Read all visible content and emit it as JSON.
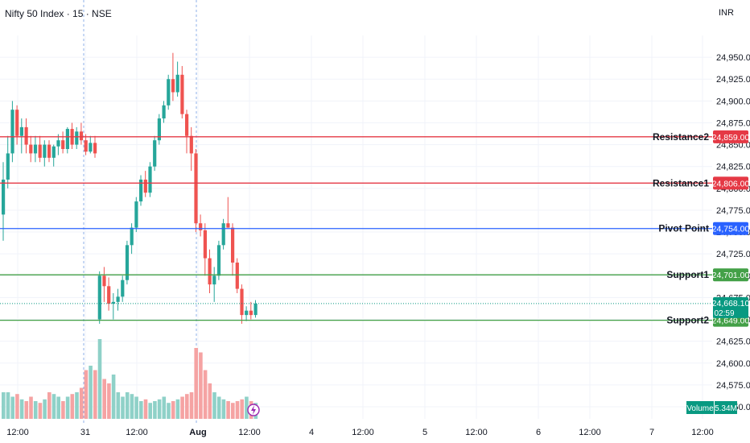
{
  "header": {
    "title": "Nifty 50 Index · 15 · NSE",
    "currency": "INR"
  },
  "colors": {
    "up": "#26a69a",
    "down": "#ef5350",
    "up_vol": "#8fd1c8",
    "down_vol": "#f5a3a3",
    "resistance": "#e53945",
    "pivot": "#2962ff",
    "support": "#43a047",
    "last": "#089981"
  },
  "chart_data": {
    "type": "candlestick",
    "price_axis": {
      "ylim": [
        24550,
        24975
      ],
      "ticks": [
        "24,950.00",
        "24,925.00",
        "24,900.00",
        "24,875.00",
        "24,850.00",
        "24,825.00",
        "24,800.00",
        "24,775.00",
        "24,750.00",
        "24,725.00",
        "24,700.00",
        "24,675.00",
        "24,650.00",
        "24,625.00",
        "24,600.00",
        "24,575.00",
        "24,550.00"
      ],
      "tick_values": [
        24950,
        24925,
        24900,
        24875,
        24850,
        24825,
        24800,
        24775,
        24750,
        24725,
        24700,
        24675,
        24650,
        24625,
        24600,
        24575,
        24550
      ]
    },
    "time_axis": {
      "ticks": [
        "12:00",
        "31",
        "12:00",
        "Aug",
        "12:00",
        "4",
        "12:00",
        "5",
        "12:00",
        "6",
        "12:00",
        "7",
        "12:00"
      ]
    },
    "levels": [
      {
        "name": "Resistance2",
        "value": 24859,
        "label": "24,859.00",
        "kind": "resistance"
      },
      {
        "name": "Resistance1",
        "value": 24806,
        "label": "24,806.00",
        "kind": "resistance"
      },
      {
        "name": "Pivot Point",
        "value": 24754,
        "label": "24,754.00",
        "kind": "pivot"
      },
      {
        "name": "Support1",
        "value": 24701,
        "label": "24,701.00",
        "kind": "support"
      },
      {
        "name": "Support2",
        "value": 24649,
        "label": "24,649.00",
        "kind": "support"
      }
    ],
    "last_price": {
      "value": 24668.1,
      "label": "24,668.10",
      "countdown": "02:59"
    },
    "volume": {
      "label": "Volume",
      "value": "5.34M"
    },
    "candles": [
      [
        24770,
        24830,
        24740,
        24810
      ],
      [
        24810,
        24860,
        24800,
        24840
      ],
      [
        24840,
        24900,
        24830,
        24890
      ],
      [
        24890,
        24895,
        24850,
        24860
      ],
      [
        24860,
        24880,
        24840,
        24870
      ],
      [
        24870,
        24880,
        24840,
        24850
      ],
      [
        24850,
        24860,
        24830,
        24840
      ],
      [
        24840,
        24860,
        24830,
        24850
      ],
      [
        24850,
        24860,
        24830,
        24835
      ],
      [
        24835,
        24855,
        24825,
        24850
      ],
      [
        24850,
        24855,
        24830,
        24835
      ],
      [
        24835,
        24850,
        24825,
        24848
      ],
      [
        24848,
        24862,
        24838,
        24855
      ],
      [
        24855,
        24865,
        24840,
        24845
      ],
      [
        24845,
        24870,
        24840,
        24868
      ],
      [
        24868,
        24875,
        24845,
        24850
      ],
      [
        24850,
        24870,
        24845,
        24865
      ],
      [
        24865,
        24875,
        24850,
        24855
      ],
      [
        24855,
        24862,
        24838,
        24842
      ],
      [
        24842,
        24860,
        24840,
        24852
      ],
      [
        24852,
        24860,
        24835,
        24840
      ],
      [
        24650,
        24705,
        24645,
        24700
      ],
      [
        24700,
        24710,
        24670,
        24688
      ],
      [
        24688,
        24698,
        24660,
        24668
      ],
      [
        24668,
        24680,
        24650,
        24670
      ],
      [
        24670,
        24685,
        24660,
        24676
      ],
      [
        24676,
        24700,
        24670,
        24695
      ],
      [
        24695,
        24740,
        24690,
        24735
      ],
      [
        24735,
        24760,
        24725,
        24755
      ],
      [
        24755,
        24790,
        24750,
        24785
      ],
      [
        24785,
        24815,
        24780,
        24810
      ],
      [
        24810,
        24820,
        24790,
        24795
      ],
      [
        24795,
        24830,
        24790,
        24825
      ],
      [
        24825,
        24860,
        24820,
        24855
      ],
      [
        24855,
        24885,
        24850,
        24880
      ],
      [
        24880,
        24900,
        24875,
        24895
      ],
      [
        24895,
        24930,
        24890,
        24925
      ],
      [
        24925,
        24955,
        24900,
        24910
      ],
      [
        24910,
        24945,
        24905,
        24930
      ],
      [
        24930,
        24940,
        24880,
        24885
      ],
      [
        24885,
        24890,
        24840,
        24860
      ],
      [
        24860,
        24870,
        24820,
        24840
      ],
      [
        24840,
        24845,
        24750,
        24760
      ],
      [
        24760,
        24770,
        24745,
        24752
      ],
      [
        24752,
        24760,
        24700,
        24720
      ],
      [
        24720,
        24730,
        24680,
        24690
      ],
      [
        24690,
        24710,
        24670,
        24700
      ],
      [
        24700,
        24740,
        24695,
        24735
      ],
      [
        24735,
        24765,
        24730,
        24760
      ],
      [
        24760,
        24790,
        24755,
        24755
      ],
      [
        24755,
        24760,
        24700,
        24715
      ],
      [
        24715,
        24720,
        24680,
        24685
      ],
      [
        24685,
        24690,
        24645,
        24655
      ],
      [
        24655,
        24665,
        24648,
        24660
      ],
      [
        24660,
        24670,
        24650,
        24655
      ],
      [
        24655,
        24672,
        24652,
        24668
      ]
    ],
    "volumes": [
      0.3,
      0.3,
      0.25,
      0.28,
      0.22,
      0.2,
      0.25,
      0.2,
      0.18,
      0.22,
      0.3,
      0.28,
      0.25,
      0.2,
      0.25,
      0.28,
      0.3,
      0.35,
      0.55,
      0.6,
      0.55,
      0.9,
      0.45,
      0.4,
      0.5,
      0.3,
      0.25,
      0.3,
      0.28,
      0.25,
      0.2,
      0.22,
      0.18,
      0.2,
      0.22,
      0.25,
      0.18,
      0.2,
      0.22,
      0.25,
      0.28,
      0.3,
      0.8,
      0.75,
      0.55,
      0.4,
      0.3,
      0.25,
      0.22,
      0.2,
      0.18,
      0.2,
      0.22,
      0.25,
      0.2,
      0.18
    ]
  }
}
